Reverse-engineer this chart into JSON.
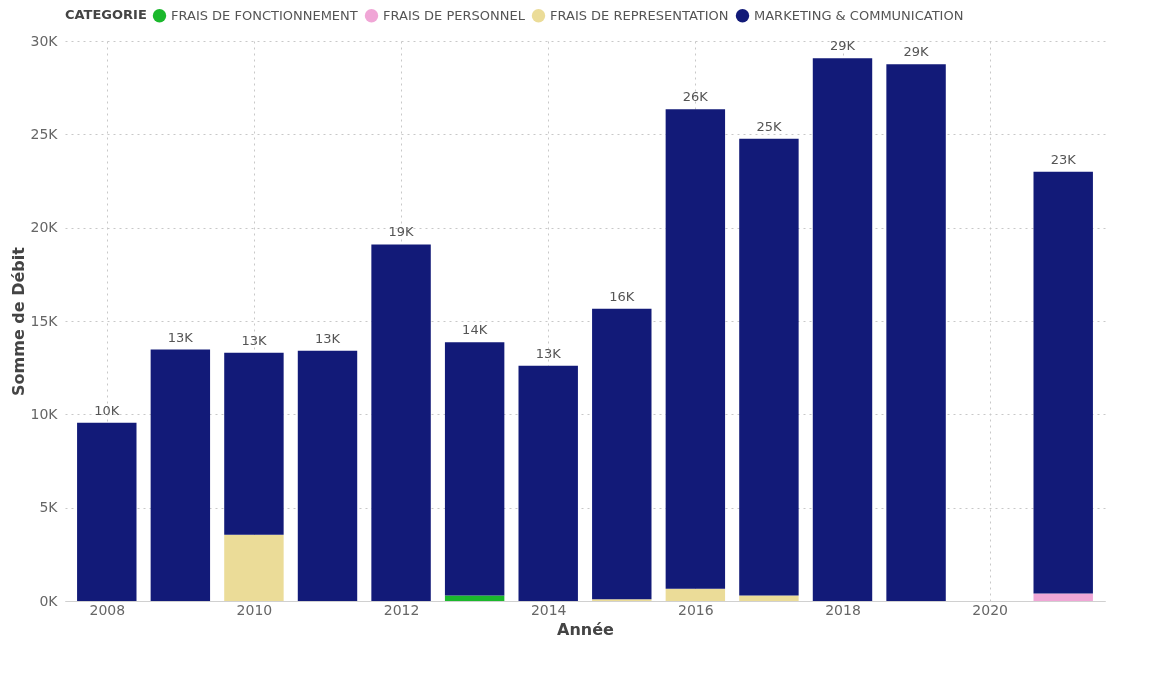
{
  "chart_data": {
    "type": "bar",
    "stacked": true,
    "xlabel": "Année",
    "ylabel": "Somme de Débit",
    "legend_title": "CATEGORIE",
    "legend": "top left",
    "grid": true,
    "x": [
      2008,
      2009,
      2010,
      2011,
      2012,
      2013,
      2014,
      2015,
      2016,
      2017,
      2018,
      2019,
      2020,
      2021
    ],
    "xlim": [
      2007.5,
      2021.5
    ],
    "xticks": [
      2008,
      2010,
      2012,
      2014,
      2016,
      2018,
      2020
    ],
    "ylim": [
      0,
      30000
    ],
    "yticks": [
      {
        "value": 0,
        "label": "0K"
      },
      {
        "value": 5000,
        "label": "5K"
      },
      {
        "value": 10000,
        "label": "10K"
      },
      {
        "value": 15000,
        "label": "15K"
      },
      {
        "value": 20000,
        "label": "20K"
      },
      {
        "value": 25000,
        "label": "25K"
      },
      {
        "value": 30000,
        "label": "30K"
      }
    ],
    "series": [
      {
        "name": "FRAIS DE FONCTIONNEMENT",
        "color": "#1bb82c",
        "values": [
          null,
          null,
          null,
          null,
          null,
          300,
          null,
          null,
          null,
          null,
          null,
          null,
          null,
          null
        ]
      },
      {
        "name": "FRAIS DE PERSONNEL",
        "color": "#f0a6d6",
        "values": [
          null,
          null,
          null,
          null,
          null,
          null,
          null,
          null,
          null,
          null,
          null,
          null,
          null,
          400
        ]
      },
      {
        "name": "FRAIS DE REPRESENTATION",
        "color": "#ebdc98",
        "values": [
          null,
          null,
          3550,
          null,
          null,
          null,
          null,
          100,
          650,
          300,
          null,
          null,
          null,
          null
        ]
      },
      {
        "name": "MARKETING & COMMUNICATION",
        "color": "#121a78",
        "values": [
          9550,
          13470,
          9750,
          13400,
          19100,
          13560,
          12600,
          15560,
          25700,
          24470,
          29080,
          28750,
          null,
          22600
        ]
      }
    ],
    "totals": [
      "10K",
      "13K",
      "13K",
      "13K",
      "19K",
      "14K",
      "13K",
      "16K",
      "26K",
      "25K",
      "29K",
      "29K",
      null,
      "23K"
    ]
  }
}
